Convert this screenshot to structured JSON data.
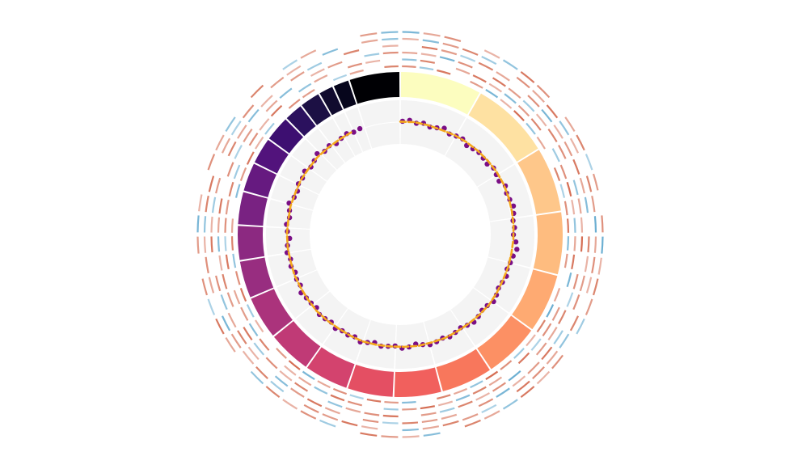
{
  "chart_data": {
    "type": "circos",
    "segment_lengths": [
      249,
      243,
      198,
      191,
      181,
      171,
      159,
      146,
      141,
      136,
      135,
      133,
      115,
      107,
      102,
      90,
      83,
      80,
      59,
      64,
      47,
      51,
      155
    ],
    "segment_colors": [
      "#fcfdbf",
      "#fee1a2",
      "#fec78a",
      "#febc7f",
      "#feaa72",
      "#fc9064",
      "#f8775c",
      "#f1605d",
      "#e44f63",
      "#d3436e",
      "#c03a76",
      "#ab337c",
      "#982d80",
      "#8c2981",
      "#792282",
      "#661a80",
      "#52137c",
      "#3d0f71",
      "#2b115e",
      "#1c1044",
      "#110b2e",
      "#07061c",
      "#000004"
    ],
    "ylim": [
      0,
      1
    ],
    "series": [
      {
        "kind": "scatter",
        "color": "#7a0f86",
        "x": [
          10,
          40,
          70,
          100,
          130,
          160,
          190,
          220,
          250,
          280,
          310,
          340,
          370,
          400,
          430,
          460,
          490,
          520,
          550,
          580,
          610,
          640,
          670,
          700,
          730,
          760,
          790,
          820,
          850,
          880,
          910,
          940,
          970,
          1000,
          1030,
          1060,
          1090,
          1120,
          1150,
          1180,
          1210,
          1240,
          1270,
          1300,
          1330,
          1360,
          1390,
          1420,
          1450,
          1480,
          1510,
          1540,
          1570,
          1600,
          1630,
          1660,
          1690,
          1720,
          1750,
          1780,
          1810,
          1840,
          1870,
          1900,
          1930,
          1960,
          1990,
          2020,
          2050,
          2080,
          2110,
          2140,
          2170,
          2200,
          2230,
          2260,
          2290,
          2320,
          2350,
          2380,
          2410,
          2440,
          2470,
          2500,
          2530,
          2560,
          2590,
          2620,
          2650,
          2680,
          2710,
          2740,
          2770,
          2800,
          2830,
          2860
        ],
        "values": [
          0.52,
          0.55,
          0.5,
          0.53,
          0.48,
          0.51,
          0.56,
          0.49,
          0.52,
          0.54,
          0.47,
          0.5,
          0.53,
          0.51,
          0.49,
          0.55,
          0.52,
          0.5,
          0.58,
          0.54,
          0.56,
          0.6,
          0.57,
          0.53,
          0.55,
          0.52,
          0.58,
          0.62,
          0.56,
          0.53,
          0.5,
          0.54,
          0.51,
          0.49,
          0.53,
          0.56,
          0.5,
          0.48,
          0.52,
          0.55,
          0.51,
          0.47,
          0.5,
          0.53,
          0.49,
          0.52,
          0.54,
          0.5,
          0.46,
          0.51,
          0.53,
          0.48,
          0.5,
          0.52,
          0.47,
          0.51,
          0.55,
          0.49,
          0.52,
          0.5,
          0.54,
          0.48,
          0.51,
          0.53,
          0.47,
          0.5,
          0.52,
          0.56,
          0.49,
          0.51,
          0.48,
          0.53,
          0.5,
          0.55,
          0.52,
          0.46,
          0.51,
          0.54,
          0.49,
          0.52,
          0.57,
          0.5,
          0.48,
          0.53,
          0.51,
          0.55,
          0.49,
          0.52,
          0.58,
          0.5,
          0.53,
          0.47,
          0.51,
          0.54,
          0.5,
          0.52
        ]
      },
      {
        "kind": "line",
        "color": "#f5a81c",
        "x": [
          0,
          60,
          120,
          180,
          240,
          300,
          360,
          420,
          480,
          540,
          600,
          660,
          720,
          780,
          840,
          900,
          960,
          1020,
          1080,
          1140,
          1200,
          1260,
          1320,
          1380,
          1440,
          1500,
          1560,
          1620,
          1680,
          1740,
          1800,
          1860,
          1920,
          1980,
          2040,
          2100,
          2160,
          2220,
          2280,
          2340,
          2400,
          2460,
          2520,
          2580,
          2640,
          2700,
          2760,
          2820
        ],
        "values": [
          0.51,
          0.52,
          0.51,
          0.5,
          0.52,
          0.53,
          0.54,
          0.55,
          0.56,
          0.56,
          0.55,
          0.54,
          0.53,
          0.52,
          0.51,
          0.51,
          0.5,
          0.51,
          0.52,
          0.51,
          0.5,
          0.5,
          0.51,
          0.5,
          0.51,
          0.5,
          0.5,
          0.51,
          0.52,
          0.51,
          0.5,
          0.51,
          0.52,
          0.51,
          0.51,
          0.52,
          0.51,
          0.52,
          0.52,
          0.51,
          0.52,
          0.51,
          0.52,
          0.51,
          0.52,
          0.51,
          0.51,
          0.52
        ]
      }
    ],
    "heat_colors": {
      "positive": "#cf5a3c",
      "negative": "#4a9cc8"
    },
    "heat_tracks": [
      [
        0.6,
        -0.4,
        0.8,
        null,
        0.5,
        -0.7,
        0.3,
        0.9,
        -0.5,
        0.4,
        null,
        0.7,
        -0.3,
        0.6,
        0.8,
        -0.6,
        0.5,
        null,
        0.4,
        -0.8,
        0.7,
        0.3,
        -0.4,
        0.6,
        0.9,
        -0.5,
        0.4,
        0.7,
        null,
        -0.6,
        0.5,
        0.8,
        -0.3,
        0.6,
        0.4,
        -0.7,
        0.9,
        0.5,
        null,
        0.3,
        -0.4,
        0.8,
        0.6,
        -0.5,
        0.7,
        0.4,
        null,
        -0.6,
        0.5,
        0.8,
        0.3,
        -0.4,
        null,
        0.6,
        0.5,
        null,
        -0.3,
        0.4,
        null,
        0.7
      ],
      [
        -0.5,
        0.7,
        null,
        0.4,
        0.8,
        0.3,
        -0.6,
        0.5,
        0.7,
        null,
        -0.4,
        0.6,
        0.9,
        0.3,
        -0.5,
        0.4,
        0.8,
        -0.7,
        null,
        0.5,
        0.6,
        -0.3,
        0.8,
        null,
        0.4,
        0.7,
        -0.6,
        0.3,
        0.9,
        0.5,
        -0.4,
        null,
        0.6,
        0.8,
        -0.5,
        0.4,
        0.3,
        null,
        0.7,
        -0.6,
        0.5,
        0.4,
        null,
        0.8,
        -0.3,
        0.6,
        0.5,
        0.7,
        -0.4,
        null,
        0.6,
        0.3,
        0.8,
        null,
        -0.5,
        0.4,
        null,
        0.6,
        0.3,
        null
      ],
      [
        0.4,
        0.3,
        -0.7,
        0.6,
        null,
        0.8,
        0.5,
        -0.4,
        0.3,
        0.7,
        0.6,
        null,
        -0.5,
        0.4,
        0.3,
        0.9,
        null,
        0.6,
        -0.3,
        0.7,
        0.4,
        0.5,
        null,
        -0.8,
        0.6,
        0.3,
        0.7,
        -0.4,
        0.5,
        null,
        0.8,
        0.6,
        0.4,
        -0.5,
        null,
        0.7,
        0.3,
        0.6,
        -0.4,
        0.8,
        null,
        0.5,
        0.7,
        0.3,
        -0.6,
        0.4,
        0.8,
        null,
        0.6,
        -0.3,
        0.5,
        null,
        0.4,
        -0.6,
        null,
        0.3,
        0.5,
        null,
        -0.4,
        0.6
      ],
      [
        null,
        0.8,
        0.5,
        -0.3,
        0.7,
        0.4,
        null,
        0.6,
        -0.7,
        0.3,
        0.5,
        0.8,
        0.4,
        -0.6,
        null,
        0.7,
        0.3,
        0.5,
        0.6,
        null,
        -0.4,
        0.8,
        0.5,
        0.3,
        -0.7,
        0.6,
        null,
        0.4,
        0.5,
        0.7,
        -0.3,
        0.6,
        null,
        0.4,
        0.8,
        0.5,
        -0.6,
        null,
        0.3,
        0.7,
        0.4,
        -0.5,
        0.6,
        null,
        0.8,
        0.3,
        -0.4,
        0.5,
        null,
        0.7,
        0.4,
        -0.6,
        0.3,
        null,
        0.5,
        -0.4,
        null,
        0.7,
        null,
        0.3
      ],
      [
        0.3,
        -0.6,
        0.5,
        0.7,
        -0.4,
        null,
        0.6,
        0.4,
        0.8,
        -0.5,
        0.3,
        null,
        0.7,
        0.5,
        -0.8,
        0.4,
        0.6,
        0.3,
        null,
        0.7,
        -0.5,
        0.4,
        0.6,
        0.8,
        null,
        -0.3,
        0.5,
        0.7,
        0.4,
        -0.6,
        null,
        0.3,
        0.8,
        0.5,
        0.6,
        null,
        -0.4,
        0.7,
        0.3,
        0.5,
        -0.7,
        null,
        0.4,
        0.6,
        0.3,
        -0.5,
        0.7,
        0.8,
        null,
        0.4,
        -0.3,
        0.6,
        null,
        0.5,
        0.3,
        null,
        -0.6,
        null,
        0.4,
        -0.5
      ],
      [
        -0.7,
        0.4,
        0.6,
        null,
        0.3,
        -0.5,
        0.8,
        0.6,
        null,
        0.4,
        0.7,
        -0.3,
        0.5,
        null,
        0.6,
        -0.8,
        0.3,
        0.7,
        0.5,
        -0.4,
        null,
        0.6,
        0.3,
        0.8,
        -0.5,
        0.4,
        0.7,
        null,
        -0.6,
        0.3,
        0.5,
        0.8,
        null,
        -0.4,
        0.6,
        0.3,
        0.7,
        -0.5,
        null,
        0.4,
        0.8,
        -0.3,
        0.6,
        null,
        0.5,
        -0.7,
        0.3,
        null,
        0.6,
        0.4,
        -0.5,
        null,
        0.7,
        null,
        -0.3,
        0.4,
        null,
        null,
        0.5,
        -0.6
      ]
    ]
  }
}
